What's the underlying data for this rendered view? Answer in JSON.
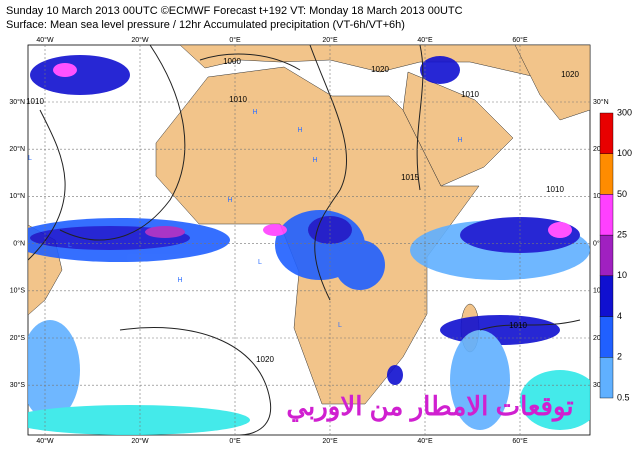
{
  "header": {
    "line1": "Sunday 10 March 2013 00UTC ©ECMWF Forecast t+192 VT: Monday 18 March 2013 00UTC",
    "line2": "Surface: Mean sea level pressure / 12hr Accumulated precipitation (VT-6h/VT+6h)"
  },
  "map": {
    "lon_labels": [
      "40°W",
      "20°W",
      "0°E",
      "20°E",
      "40°E",
      "60°E"
    ],
    "lat_labels": [
      "30°N",
      "20°N",
      "10°N",
      "0°N",
      "10°S",
      "20°S",
      "30°S"
    ],
    "isobar_labels": [
      "1000",
      "1010",
      "1010",
      "1015",
      "1010",
      "1020",
      "1020",
      "1010",
      "1020",
      "1010"
    ],
    "centers": [
      "H",
      "H",
      "L",
      "H",
      "L",
      "H",
      "L",
      "L",
      "H",
      "H"
    ]
  },
  "colorbar": {
    "levels": [
      "300",
      "100",
      "50",
      "25",
      "10",
      "4",
      "2",
      "0.5"
    ],
    "colors": [
      "#e80000",
      "#ff8c00",
      "#ff40ff",
      "#a020c0",
      "#1010d0",
      "#2060ff",
      "#60b0ff",
      "#30e8e8"
    ]
  },
  "watermark": "توقعات الامطار من الاوربي"
}
